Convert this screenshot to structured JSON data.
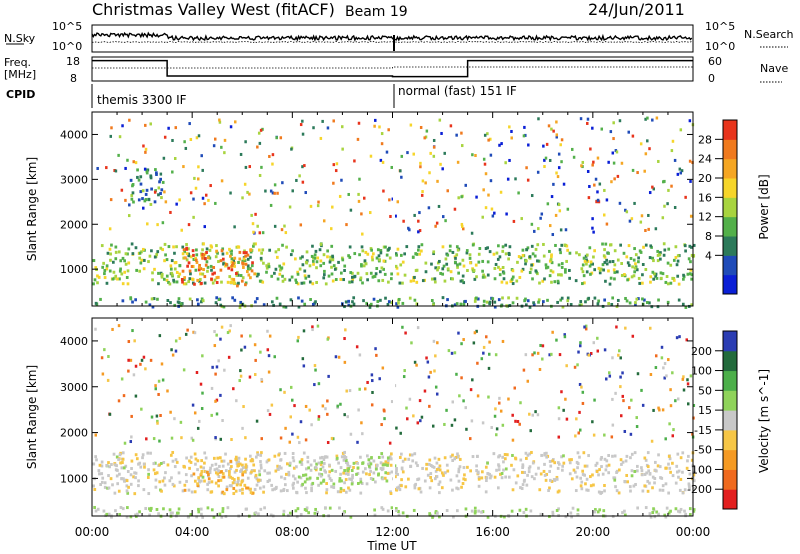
{
  "header": {
    "station": "Christmas Valley West (fitACF)",
    "beam": "Beam 19",
    "date": "24/Jun/2011"
  },
  "top_panels": {
    "nsky_label": "N.Sky",
    "nsearch_label": "N.Search",
    "nsky_ticks": [
      "10^5",
      "10^0"
    ],
    "nsearch_ticks": [
      "10^5",
      "10^0"
    ],
    "freq_label": "Freq.",
    "freq_unit": "[MHz]",
    "freq_ticks": [
      "18",
      "8"
    ],
    "nave_label": "Nave",
    "nave_ticks": [
      "60",
      "0"
    ],
    "cpid_label": "CPID",
    "cpid_modes": [
      {
        "label": "themis 3300 IF",
        "start_hour": 0,
        "end_hour": 12
      },
      {
        "label": "normal (fast) 151 IF",
        "start_hour": 12,
        "end_hour": 24
      }
    ],
    "freq_steps": [
      {
        "from_hour": 0,
        "to_hour": 3,
        "level": 0.92
      },
      {
        "from_hour": 3,
        "to_hour": 12,
        "level": 0.15
      },
      {
        "from_hour": 12,
        "to_hour": 15,
        "level": 0.12
      },
      {
        "from_hour": 15,
        "to_hour": 24,
        "level": 0.92
      }
    ],
    "nave_steps": [
      {
        "from_hour": 0,
        "to_hour": 12,
        "level": 0.55
      },
      {
        "from_hour": 12,
        "to_hour": 24,
        "level": 0.6
      }
    ]
  },
  "chart_data": [
    {
      "type": "heatmap",
      "title": "",
      "xlabel": "Time UT",
      "ylabel": "Slant Range [km]",
      "x_ticks": [
        "00:00",
        "04:00",
        "08:00",
        "12:00",
        "16:00",
        "20:00",
        "00:00"
      ],
      "x_tick_hours": [
        0,
        4,
        8,
        12,
        16,
        20,
        24
      ],
      "y_ticks": [
        "4000",
        "3000",
        "2000",
        "1000"
      ],
      "y_tick_values": [
        4000,
        3000,
        2000,
        1000
      ],
      "xlim": [
        0,
        24
      ],
      "ylim": [
        180,
        4500
      ],
      "colorbar": {
        "label": "Power [dB]",
        "ticks": [
          "28",
          "24",
          "20",
          "16",
          "12",
          "8",
          "4"
        ],
        "range": [
          0,
          32
        ],
        "colors": [
          "#0a1fd6",
          "#1f4bb8",
          "#2c7a5a",
          "#53b04a",
          "#a8d43f",
          "#f6d52a",
          "#f5a623",
          "#f07a1e",
          "#e8341c"
        ]
      },
      "features": [
        {
          "name": "main echo band",
          "t_start": 0,
          "t_end": 24,
          "range_start_km": 700,
          "range_end_km": 1600,
          "value": 14
        },
        {
          "name": "strong echo",
          "t_start": 3.5,
          "t_end": 6.5,
          "range_start_km": 650,
          "range_end_km": 1500,
          "value": 26
        },
        {
          "name": "high range patch",
          "t_start": 1.5,
          "t_end": 2.8,
          "range_start_km": 2400,
          "range_end_km": 3300,
          "value": 10
        },
        {
          "name": "ground scatter",
          "t_start": 0,
          "t_end": 24,
          "range_start_km": 180,
          "range_end_km": 400,
          "value": 10
        }
      ]
    },
    {
      "type": "heatmap",
      "title": "",
      "xlabel": "Time UT",
      "ylabel": "Slant Range [km]",
      "x_ticks": [
        "00:00",
        "04:00",
        "08:00",
        "12:00",
        "16:00",
        "20:00",
        "00:00"
      ],
      "x_tick_hours": [
        0,
        4,
        8,
        12,
        16,
        20,
        24
      ],
      "y_ticks": [
        "4000",
        "3000",
        "2000",
        "1000"
      ],
      "y_tick_values": [
        4000,
        3000,
        2000,
        1000
      ],
      "xlim": [
        0,
        24
      ],
      "ylim": [
        180,
        4500
      ],
      "colorbar": {
        "label": "Velocity [m s^-1]",
        "ticks": [
          "200",
          "100",
          "50",
          "15",
          "-15",
          "-50",
          "-100",
          "-200"
        ],
        "range": [
          -250,
          250
        ],
        "colors": [
          "#e21f1f",
          "#f06a1e",
          "#f59a23",
          "#f6c646",
          "#c8c8c8",
          "#8fd35a",
          "#4caf4a",
          "#236b3c",
          "#2b3db3"
        ]
      },
      "features": [
        {
          "name": "ionospheric scatter",
          "t_start": 0,
          "t_end": 24,
          "range_start_km": 700,
          "range_end_km": 1600,
          "value": -10
        },
        {
          "name": "flow toward radar",
          "t_start": 3.5,
          "t_end": 6.5,
          "range_start_km": 700,
          "range_end_km": 1500,
          "value": -60
        },
        {
          "name": "flow away from radar",
          "t_start": 8,
          "t_end": 11.8,
          "range_start_km": 900,
          "range_end_km": 1500,
          "value": 40
        },
        {
          "name": "ground scatter",
          "t_start": 0,
          "t_end": 24,
          "range_start_km": 180,
          "range_end_km": 400,
          "value": 30
        }
      ]
    }
  ]
}
